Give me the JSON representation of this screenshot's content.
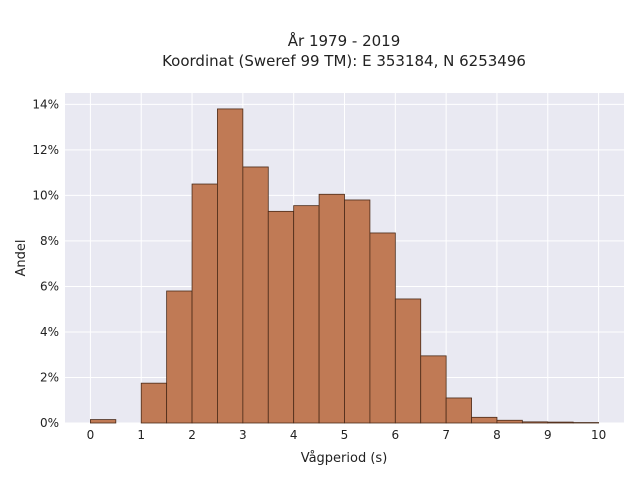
{
  "chart_data": {
    "type": "bar",
    "title_line1": "År 1979 - 2019",
    "title_line2": "Koordinat (Sweref 99 TM): E 353184, N 6253496",
    "xlabel": "Vågperiod (s)",
    "ylabel": "Andel",
    "bin_width": 0.5,
    "bin_starts": [
      0,
      0.5,
      1,
      1.5,
      2,
      2.5,
      3,
      3.5,
      4,
      4.5,
      5,
      5.5,
      6,
      6.5,
      7,
      7.5,
      8,
      8.5,
      9,
      9.5
    ],
    "values": [
      0.15,
      0,
      1.75,
      5.8,
      10.5,
      13.8,
      11.25,
      9.3,
      9.55,
      10.05,
      9.8,
      8.35,
      5.45,
      2.95,
      1.1,
      0.25,
      0.12,
      0.05,
      0.04,
      0.02
    ],
    "xlim": [
      -0.5,
      10.5
    ],
    "ylim": [
      0,
      14.5
    ],
    "x_ticks": [
      "0",
      "1",
      "2",
      "3",
      "4",
      "5",
      "6",
      "7",
      "8",
      "9",
      "10"
    ],
    "y_ticks": [
      "0%",
      "2%",
      "4%",
      "6%",
      "8%",
      "10%",
      "12%",
      "14%"
    ],
    "grid": true,
    "bar_color": "#c07a55",
    "background_color": "#e9e9f2"
  }
}
